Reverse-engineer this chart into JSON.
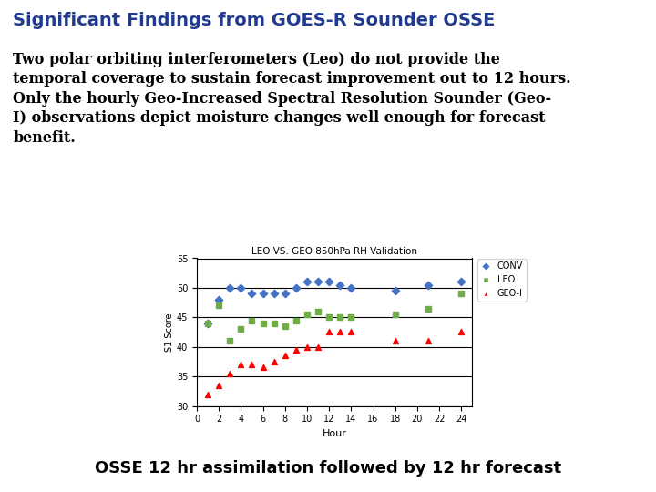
{
  "title": "Significant Findings from GOES-R Sounder OSSE",
  "body_lines": [
    "Two polar orbiting interferometers (Leo) do not provide the",
    "temporal coverage to sustain forecast improvement out to 12 hours.",
    "Only the hourly Geo-Increased Spectral Resolution Sounder (Geo-",
    "I) observations depict moisture changes well enough for forecast",
    "benefit."
  ],
  "footer_text": "OSSE 12 hr assimilation followed by 12 hr forecast",
  "chart_title": "LEO VS. GEO 850hPa RH Validation",
  "xlabel": "Hour",
  "ylabel": "S1 Score",
  "ylim": [
    30,
    55
  ],
  "xlim": [
    0,
    25
  ],
  "yticks": [
    30,
    35,
    40,
    45,
    50,
    55
  ],
  "xticks": [
    0,
    2,
    4,
    6,
    8,
    10,
    12,
    14,
    16,
    18,
    20,
    22,
    24
  ],
  "bg_color": "#ffffff",
  "title_color": "#1F3A8F",
  "body_color": "#000000",
  "footer_color": "#000000",
  "CONV": {
    "x": [
      1,
      2,
      3,
      4,
      5,
      6,
      7,
      8,
      9,
      10,
      11,
      12,
      13,
      14,
      18,
      21,
      24
    ],
    "y": [
      44,
      48,
      50,
      50,
      49,
      49,
      49,
      49,
      50,
      51,
      51,
      51,
      50.5,
      50,
      49.5,
      50.5,
      51
    ],
    "color": "#4472C4",
    "marker": "D",
    "label": "CONV"
  },
  "LEO": {
    "x": [
      1,
      2,
      3,
      4,
      5,
      6,
      7,
      8,
      9,
      10,
      11,
      12,
      13,
      14,
      18,
      21,
      24
    ],
    "y": [
      44,
      47,
      41,
      43,
      44.5,
      44,
      44,
      43.5,
      44.5,
      45.5,
      46,
      45,
      45,
      45,
      45.5,
      46.5,
      49
    ],
    "color": "#70AD47",
    "marker": "s",
    "label": "LEO"
  },
  "GEOI": {
    "x": [
      1,
      2,
      3,
      4,
      5,
      6,
      7,
      8,
      9,
      10,
      11,
      12,
      13,
      14,
      18,
      21,
      24
    ],
    "y": [
      32,
      33.5,
      35.5,
      37,
      37,
      36.5,
      37.5,
      38.5,
      39.5,
      40,
      40,
      42.5,
      42.5,
      42.5,
      41,
      41,
      42.5
    ],
    "color": "#FF0000",
    "marker": "^",
    "label": "GEO-I"
  }
}
